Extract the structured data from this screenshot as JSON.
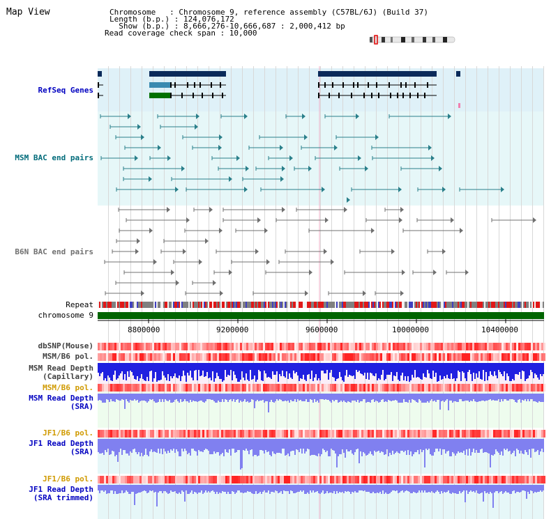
{
  "view": {
    "title": "Map View",
    "chromosome_line": "Chromosome   : Chromosome 9, reference assembly (C57BL/6J) (Build 37)",
    "length_line": "Length (b.p.) : 124,076,172",
    "show_line": "  Show (b.p.) : 8,666,276-10,666,687 : 2,000,412 bp",
    "coverage_line": "Read coverage check span : 10,000",
    "ideogram_icon": "chromosome-ideogram"
  },
  "tracks": {
    "refseq": "RefSeq Genes",
    "msm_bac": "MSM BAC end pairs",
    "b6n_bac": "B6N BAC end pairs",
    "repeat": "Repeat",
    "chromosome": "chromosome 9",
    "dbsnp": "dbSNP(Mouse)",
    "msm_pol1": "MSM/B6 pol.",
    "msm_depth_cap_1": "MSM Read Depth",
    "msm_depth_cap_2": "(Capillary)",
    "msm_pol2": "MSM/B6 pol.",
    "msm_depth_sra_1": "MSM Read Depth",
    "msm_depth_sra_2": "(SRA)",
    "jf1_pol1": "JF1/B6 pol.",
    "jf1_depth_sra_1": "JF1 Read Depth",
    "jf1_depth_sra_2": "(SRA)",
    "jf1_pol2": "JF1/B6 pol.",
    "jf1_depth_trim_1": "JF1 Read Depth",
    "jf1_depth_trim_2": "(SRA trimmed)"
  },
  "axis": {
    "ticks": [
      "8800000",
      "9200000",
      "9600000",
      "10000000",
      "10400000"
    ]
  },
  "colors": {
    "refseq_bg": "#dff1f8",
    "msm_bg": "#e6f7f8",
    "b6n_bg": "#ffffff",
    "gene_dark": "#0a2a5a",
    "gene_mid": "#3a8ab0",
    "gene_green": "#007000",
    "teal": "#2a7f8a",
    "gray_pair": "#707070",
    "chromosome_bar": "#006400",
    "depth_capillary": "#2020e0",
    "depth_sra": "#8080f0",
    "pol_red": "#e02020"
  }
}
